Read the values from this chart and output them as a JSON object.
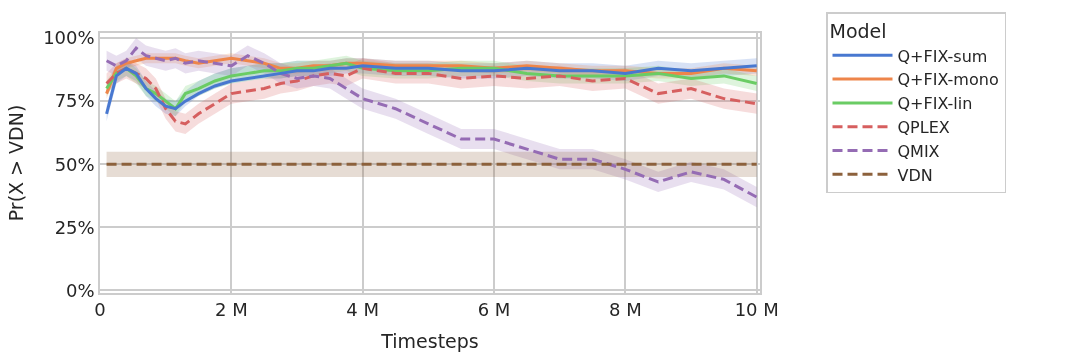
{
  "chart_data": {
    "type": "line",
    "xlabel": "Timesteps",
    "ylabel": "Pr(X > VDN)",
    "legend_title": "Model",
    "legend": "right",
    "grid": true,
    "marker": "none",
    "xlim": [
      0,
      10.05
    ],
    "xticks": [
      {
        "value": 0,
        "label": "0"
      },
      {
        "value": 2,
        "label": "2 M"
      },
      {
        "value": 4,
        "label": "4 M"
      },
      {
        "value": 6,
        "label": "6 M"
      },
      {
        "value": 8,
        "label": "8 M"
      },
      {
        "value": 10,
        "label": "10 M"
      }
    ],
    "ylim": [
      -1,
      102
    ],
    "yticks": [
      {
        "value": 0,
        "label": "0%"
      },
      {
        "value": 25,
        "label": "25%"
      },
      {
        "value": 50,
        "label": "50%"
      },
      {
        "value": 75,
        "label": "75%"
      },
      {
        "value": 100,
        "label": "100%"
      }
    ],
    "x": [
      0.1,
      0.25,
      0.4,
      0.55,
      0.7,
      0.85,
      1.0,
      1.15,
      1.3,
      1.5,
      1.75,
      2,
      2.25,
      2.5,
      2.75,
      3,
      3.25,
      3.5,
      3.75,
      4,
      4.5,
      5,
      5.5,
      6,
      6.5,
      7,
      7.5,
      8,
      8.5,
      9,
      9.5,
      10
    ],
    "series": [
      {
        "name": "Q+FIX-sum",
        "color": "#4878d0",
        "line_style": "solid",
        "values": [
          70,
          85,
          88,
          86,
          80,
          76,
          73,
          72,
          75,
          78,
          81,
          83,
          84,
          85,
          86,
          87,
          87,
          88,
          88,
          89,
          88,
          88,
          87,
          87,
          88,
          87,
          87,
          86,
          88,
          87,
          88,
          89
        ],
        "lower": [
          67,
          82,
          85,
          83,
          77,
          73,
          70,
          69,
          73,
          77,
          80,
          82,
          83,
          84,
          84,
          85,
          85,
          85,
          86,
          86,
          85,
          85,
          84,
          84,
          85,
          84,
          84,
          83,
          85,
          84,
          85,
          86
        ],
        "upper": [
          73,
          88,
          91,
          89,
          83,
          79,
          76,
          75,
          79,
          83,
          86,
          88,
          89,
          90,
          90,
          91,
          91,
          91,
          92,
          92,
          91,
          91,
          90,
          90,
          91,
          90,
          90,
          89,
          91,
          90,
          91,
          92
        ]
      },
      {
        "name": "Q+FIX-mono",
        "color": "#ee854a",
        "line_style": "solid",
        "values": [
          78,
          88,
          90,
          91,
          92,
          92,
          92,
          92,
          91,
          90,
          91,
          92,
          91,
          90,
          88,
          88,
          89,
          89,
          90,
          90,
          89,
          89,
          89,
          88,
          89,
          88,
          87,
          87,
          86,
          86,
          88,
          87
        ],
        "lower": [
          76,
          86,
          88,
          89,
          90,
          90,
          90,
          90,
          89,
          88,
          89,
          90,
          89,
          88,
          86,
          86,
          87,
          87,
          88,
          88,
          87,
          87,
          87,
          86,
          87,
          86,
          85,
          85,
          84,
          84,
          86,
          85
        ],
        "upper": [
          80,
          90,
          92,
          93,
          94,
          94,
          94,
          94,
          93,
          92,
          93,
          94,
          93,
          92,
          90,
          90,
          91,
          91,
          92,
          92,
          91,
          91,
          91,
          90,
          91,
          90,
          89,
          89,
          88,
          88,
          90,
          89
        ]
      },
      {
        "name": "Q+FIX-lin",
        "color": "#6acc64",
        "line_style": "solid",
        "values": [
          80,
          86,
          88,
          85,
          80,
          78,
          75,
          72,
          78,
          80,
          83,
          85,
          86,
          87,
          87,
          88,
          88,
          89,
          90,
          88,
          87,
          87,
          88,
          88,
          86,
          85,
          85,
          85,
          86,
          84,
          85,
          82
        ],
        "lower": [
          77,
          83,
          85,
          82,
          77,
          75,
          72,
          69,
          75,
          77,
          80,
          82,
          83,
          84,
          84,
          85,
          85,
          86,
          87,
          85,
          84,
          84,
          85,
          85,
          83,
          82,
          82,
          82,
          83,
          81,
          82,
          79
        ],
        "upper": [
          83,
          89,
          91,
          88,
          83,
          81,
          78,
          75,
          81,
          83,
          86,
          88,
          89,
          90,
          90,
          91,
          91,
          92,
          93,
          91,
          90,
          90,
          91,
          91,
          89,
          88,
          88,
          88,
          89,
          87,
          88,
          85
        ]
      },
      {
        "name": "QPLEX",
        "color": "#d65f5f",
        "line_style": "dashed",
        "values": [
          82,
          86,
          88,
          86,
          84,
          80,
          72,
          67,
          66,
          70,
          74,
          78,
          79,
          80,
          82,
          83,
          85,
          86,
          85,
          88,
          86,
          86,
          84,
          85,
          84,
          85,
          83,
          84,
          78,
          80,
          76,
          74
        ],
        "lower": [
          78,
          82,
          84,
          82,
          80,
          76,
          68,
          63,
          62,
          66,
          70,
          74,
          75,
          76,
          78,
          79,
          81,
          82,
          81,
          84,
          82,
          82,
          80,
          81,
          80,
          81,
          79,
          80,
          74,
          76,
          72,
          70
        ],
        "upper": [
          86,
          90,
          92,
          90,
          88,
          84,
          76,
          71,
          70,
          74,
          78,
          82,
          83,
          84,
          86,
          87,
          89,
          90,
          89,
          92,
          90,
          90,
          88,
          89,
          88,
          89,
          87,
          88,
          82,
          84,
          80,
          78
        ]
      },
      {
        "name": "QMIX",
        "color": "#956cb4",
        "line_style": "dashed",
        "values": [
          91,
          89,
          91,
          96,
          93,
          92,
          91,
          92,
          90,
          91,
          90,
          89,
          93,
          90,
          86,
          84,
          85,
          84,
          80,
          76,
          72,
          66,
          60,
          60,
          56,
          52,
          52,
          48,
          43,
          47,
          44,
          37
        ],
        "lower": [
          87,
          85,
          87,
          92,
          89,
          88,
          87,
          88,
          86,
          87,
          86,
          85,
          89,
          86,
          82,
          80,
          81,
          80,
          76,
          72,
          68,
          62,
          56,
          56,
          52,
          48,
          48,
          44,
          39,
          43,
          40,
          33
        ],
        "upper": [
          95,
          93,
          95,
          100,
          97,
          96,
          95,
          96,
          94,
          95,
          94,
          93,
          97,
          94,
          90,
          88,
          89,
          88,
          84,
          80,
          76,
          70,
          64,
          64,
          60,
          56,
          56,
          52,
          47,
          51,
          48,
          41
        ]
      },
      {
        "name": "VDN",
        "color": "#8c613c",
        "line_style": "dashed",
        "values": [
          50,
          50,
          50,
          50,
          50,
          50,
          50,
          50,
          50,
          50,
          50,
          50,
          50,
          50,
          50,
          50,
          50,
          50,
          50,
          50,
          50,
          50,
          50,
          50,
          50,
          50,
          50,
          50,
          50,
          50,
          50,
          50
        ],
        "lower": [
          45,
          45,
          45,
          45,
          45,
          45,
          45,
          45,
          45,
          45,
          45,
          45,
          45,
          45,
          45,
          45,
          45,
          45,
          45,
          45,
          45,
          45,
          45,
          45,
          45,
          45,
          45,
          45,
          45,
          45,
          45,
          45
        ],
        "upper": [
          55,
          55,
          55,
          55,
          55,
          55,
          55,
          55,
          55,
          55,
          55,
          55,
          55,
          55,
          55,
          55,
          55,
          55,
          55,
          55,
          55,
          55,
          55,
          55,
          55,
          55,
          55,
          55,
          55,
          55,
          55,
          55
        ]
      }
    ]
  }
}
